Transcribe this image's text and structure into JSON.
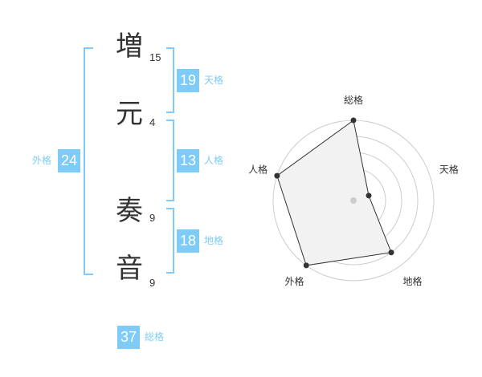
{
  "name": {
    "chars": [
      {
        "char": "増",
        "strokes": "15"
      },
      {
        "char": "元",
        "strokes": "4"
      },
      {
        "char": "奏",
        "strokes": "9"
      },
      {
        "char": "音",
        "strokes": "9"
      }
    ]
  },
  "kaku": {
    "tenkaku": {
      "label": "天格",
      "value": "19"
    },
    "jinkaku": {
      "label": "人格",
      "value": "13"
    },
    "chikaku": {
      "label": "地格",
      "value": "18"
    },
    "gaikaku": {
      "label": "外格",
      "value": "24"
    },
    "soukaku": {
      "label": "総格",
      "value": "37"
    }
  },
  "colors": {
    "accent": "#7fcbf7",
    "text": "#333333",
    "fill": "#f2f2f2",
    "ring": "#cccccc"
  },
  "chart_data": {
    "type": "radar",
    "axes": [
      "総格",
      "天格",
      "地格",
      "外格",
      "人格"
    ],
    "values": [
      5,
      1,
      4,
      5,
      5
    ],
    "range": [
      0,
      5
    ],
    "rings": 5
  }
}
